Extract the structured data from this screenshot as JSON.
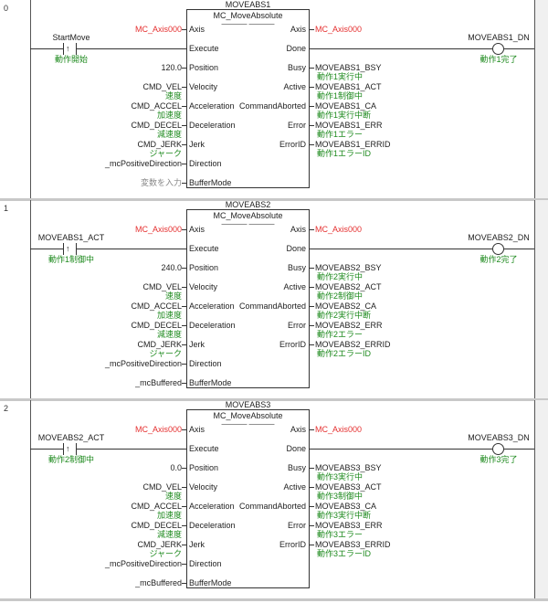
{
  "rungs": [
    {
      "number": "0",
      "instance": "MOVEABS1",
      "fb_type": "MC_MoveAbsolute",
      "fb_dashes": "———— ————",
      "contact": {
        "var": "StartMove",
        "comment": "動作開始"
      },
      "coil": {
        "var": "MOVEABS1_DN",
        "comment": "動作1完了"
      },
      "inputs": [
        {
          "pin": "Axis",
          "value": "MC_Axis000",
          "comment": ""
        },
        {
          "pin": "Execute",
          "value": "",
          "comment": ""
        },
        {
          "pin": "Position",
          "value": "120.0",
          "comment": ""
        },
        {
          "pin": "Velocity",
          "value": "CMD_VEL",
          "comment": "速度"
        },
        {
          "pin": "Acceleration",
          "value": "CMD_ACCEL",
          "comment": "加速度"
        },
        {
          "pin": "Deceleration",
          "value": "CMD_DECEL",
          "comment": "減速度"
        },
        {
          "pin": "Jerk",
          "value": "CMD_JERK",
          "comment": "ジャーク"
        },
        {
          "pin": "Direction",
          "value": "_mcPositiveDirection",
          "comment": ""
        },
        {
          "pin": "BufferMode",
          "value": "変数を入力",
          "comment": ""
        }
      ],
      "outputs": [
        {
          "pin": "Axis",
          "value": "MC_Axis000",
          "comment": ""
        },
        {
          "pin": "Done",
          "value": "",
          "comment": ""
        },
        {
          "pin": "Busy",
          "value": "MOVEABS1_BSY",
          "comment": "動作1実行中"
        },
        {
          "pin": "Active",
          "value": "MOVEABS1_ACT",
          "comment": "動作1制御中"
        },
        {
          "pin": "CommandAborted",
          "value": "MOVEABS1_CA",
          "comment": "動作1実行中断"
        },
        {
          "pin": "Error",
          "value": "MOVEABS1_ERR",
          "comment": "動作1エラー"
        },
        {
          "pin": "ErrorID",
          "value": "MOVEABS1_ERRID",
          "comment": "動作1エラーID"
        }
      ]
    },
    {
      "number": "1",
      "instance": "MOVEABS2",
      "fb_type": "MC_MoveAbsolute",
      "fb_dashes": "———— ————",
      "contact": {
        "var": "MOVEABS1_ACT",
        "comment": "動作1制御中"
      },
      "coil": {
        "var": "MOVEABS2_DN",
        "comment": "動作2完了"
      },
      "inputs": [
        {
          "pin": "Axis",
          "value": "MC_Axis000",
          "comment": ""
        },
        {
          "pin": "Execute",
          "value": "",
          "comment": ""
        },
        {
          "pin": "Position",
          "value": "240.0",
          "comment": ""
        },
        {
          "pin": "Velocity",
          "value": "CMD_VEL",
          "comment": "速度"
        },
        {
          "pin": "Acceleration",
          "value": "CMD_ACCEL",
          "comment": "加速度"
        },
        {
          "pin": "Deceleration",
          "value": "CMD_DECEL",
          "comment": "減速度"
        },
        {
          "pin": "Jerk",
          "value": "CMD_JERK",
          "comment": "ジャーク"
        },
        {
          "pin": "Direction",
          "value": "_mcPositiveDirection",
          "comment": ""
        },
        {
          "pin": "BufferMode",
          "value": "_mcBuffered",
          "comment": ""
        }
      ],
      "outputs": [
        {
          "pin": "Axis",
          "value": "MC_Axis000",
          "comment": ""
        },
        {
          "pin": "Done",
          "value": "",
          "comment": ""
        },
        {
          "pin": "Busy",
          "value": "MOVEABS2_BSY",
          "comment": "動作2実行中"
        },
        {
          "pin": "Active",
          "value": "MOVEABS2_ACT",
          "comment": "動作2制御中"
        },
        {
          "pin": "CommandAborted",
          "value": "MOVEABS2_CA",
          "comment": "動作2実行中断"
        },
        {
          "pin": "Error",
          "value": "MOVEABS2_ERR",
          "comment": "動作2エラー"
        },
        {
          "pin": "ErrorID",
          "value": "MOVEABS2_ERRID",
          "comment": "動作2エラーID"
        }
      ]
    },
    {
      "number": "2",
      "instance": "MOVEABS3",
      "fb_type": "MC_MoveAbsolute",
      "fb_dashes": "———— ————",
      "contact": {
        "var": "MOVEABS2_ACT",
        "comment": "動作2制御中"
      },
      "coil": {
        "var": "MOVEABS3_DN",
        "comment": "動作3完了"
      },
      "inputs": [
        {
          "pin": "Axis",
          "value": "MC_Axis000",
          "comment": ""
        },
        {
          "pin": "Execute",
          "value": "",
          "comment": ""
        },
        {
          "pin": "Position",
          "value": "0.0",
          "comment": ""
        },
        {
          "pin": "Velocity",
          "value": "CMD_VEL",
          "comment": "速度"
        },
        {
          "pin": "Acceleration",
          "value": "CMD_ACCEL",
          "comment": "加速度"
        },
        {
          "pin": "Deceleration",
          "value": "CMD_DECEL",
          "comment": "減速度"
        },
        {
          "pin": "Jerk",
          "value": "CMD_JERK",
          "comment": "ジャーク"
        },
        {
          "pin": "Direction",
          "value": "_mcPositiveDirection",
          "comment": ""
        },
        {
          "pin": "BufferMode",
          "value": "_mcBuffered",
          "comment": ""
        }
      ],
      "outputs": [
        {
          "pin": "Axis",
          "value": "MC_Axis000",
          "comment": ""
        },
        {
          "pin": "Done",
          "value": "",
          "comment": ""
        },
        {
          "pin": "Busy",
          "value": "MOVEABS3_BSY",
          "comment": "動作3実行中"
        },
        {
          "pin": "Active",
          "value": "MOVEABS3_ACT",
          "comment": "動作3制御中"
        },
        {
          "pin": "CommandAborted",
          "value": "MOVEABS3_CA",
          "comment": "動作3実行中断"
        },
        {
          "pin": "Error",
          "value": "MOVEABS3_ERR",
          "comment": "動作3エラー"
        },
        {
          "pin": "ErrorID",
          "value": "MOVEABS3_ERRID",
          "comment": "動作3エラーID"
        }
      ]
    }
  ],
  "icons": {
    "contact": "rising-edge-contact-icon",
    "coil": "output-coil-icon"
  },
  "colors": {
    "axis_var": "#e53030",
    "comment": "#1e8a1e",
    "placeholder": "#888888",
    "rail": "#555555"
  }
}
